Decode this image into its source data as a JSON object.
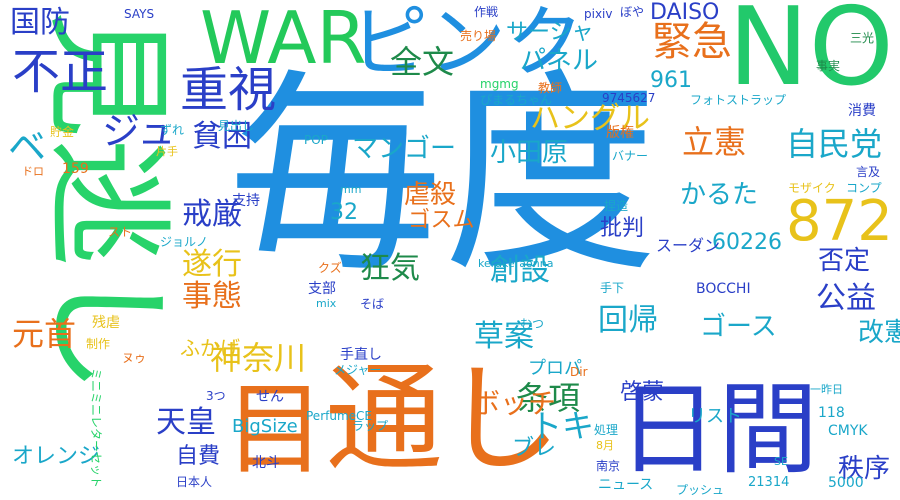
{
  "words": [
    {
      "text": "毎度",
      "color": "#1f8fe0"
    },
    {
      "text": "見逃し",
      "color": "#27d36a"
    },
    {
      "text": "通し",
      "color": "#e8701c"
    },
    {
      "text": "NO",
      "color": "#22c96b"
    },
    {
      "text": "WAR",
      "color": "#23c95a"
    },
    {
      "text": "ピンク",
      "color": "#1f8fe0"
    },
    {
      "text": "日間",
      "color": "#2a3fc7"
    },
    {
      "text": "目",
      "color": "#e8701c"
    },
    {
      "text": "872",
      "color": "#e8c21a"
    },
    {
      "text": "不正",
      "color": "#2a3fc7"
    },
    {
      "text": "重視",
      "color": "#2a3fc7"
    },
    {
      "text": "緊急",
      "color": "#e8701c"
    },
    {
      "text": "国防",
      "color": "#2a3fc7"
    },
    {
      "text": "全文",
      "color": "#1e8a4a"
    },
    {
      "text": "パネル",
      "color": "#1aa7c9"
    },
    {
      "text": "サーシャ",
      "color": "#1aa7c9"
    },
    {
      "text": "DAISO",
      "color": "#2a3fc7"
    },
    {
      "text": "961",
      "color": "#1aa7c9"
    },
    {
      "text": "立憲",
      "color": "#e8701c"
    },
    {
      "text": "自民党",
      "color": "#1aa7c9"
    },
    {
      "text": "ジュ",
      "color": "#2a3fc7"
    },
    {
      "text": "ベ",
      "color": "#1aa7c9"
    },
    {
      "text": "貧困",
      "color": "#2a3fc7"
    },
    {
      "text": "戒厳",
      "color": "#2a3fc7"
    },
    {
      "text": "マンゴー",
      "color": "#1aa7c9"
    },
    {
      "text": "小田原",
      "color": "#1aa7c9"
    },
    {
      "text": "ハングル",
      "color": "#e8c21a"
    },
    {
      "text": "虐殺",
      "color": "#e8701c"
    },
    {
      "text": "ゴスム",
      "color": "#e8701c"
    },
    {
      "text": "かるた",
      "color": "#1aa7c9"
    },
    {
      "text": "32",
      "color": "#1aa7c9"
    },
    {
      "text": "遂行",
      "color": "#e8c21a"
    },
    {
      "text": "事態",
      "color": "#e8701c"
    },
    {
      "text": "狂気",
      "color": "#1e8a4a"
    },
    {
      "text": "創設",
      "color": "#1aa7c9"
    },
    {
      "text": "批判",
      "color": "#2a3fc7"
    },
    {
      "text": "60226",
      "color": "#1aa7c9"
    },
    {
      "text": "否定",
      "color": "#2a3fc7"
    },
    {
      "text": "公益",
      "color": "#2a3fc7"
    },
    {
      "text": "元首",
      "color": "#e8701c"
    },
    {
      "text": "神奈川",
      "color": "#e8c21a"
    },
    {
      "text": "回帰",
      "color": "#1aa7c9"
    },
    {
      "text": "草案",
      "color": "#1aa7c9"
    },
    {
      "text": "ゴース",
      "color": "#1aa7c9"
    },
    {
      "text": "改憲",
      "color": "#1aa7c9"
    },
    {
      "text": "天皇",
      "color": "#2a3fc7"
    },
    {
      "text": "条項",
      "color": "#1e8a4a"
    },
    {
      "text": "トキ",
      "color": "#1aa7c9"
    },
    {
      "text": "ボッチ",
      "color": "#e8701c"
    },
    {
      "text": "啓蒙",
      "color": "#2a3fc7"
    },
    {
      "text": "オレンジ",
      "color": "#1aa7c9"
    },
    {
      "text": "自費",
      "color": "#2a3fc7"
    },
    {
      "text": "秩序",
      "color": "#2a3fc7"
    },
    {
      "text": "ブレ",
      "color": "#1aa7c9"
    },
    {
      "text": "支部",
      "color": "#2a3fc7"
    },
    {
      "text": "支持",
      "color": "#2a3fc7"
    },
    {
      "text": "BigSize",
      "color": "#1aa7c9"
    },
    {
      "text": "ふかげ",
      "color": "#e8c21a"
    },
    {
      "text": "プロパ",
      "color": "#1aa7c9"
    },
    {
      "text": "リスト",
      "color": "#1aa7c9"
    },
    {
      "text": "スーダン",
      "color": "#2a3fc7"
    },
    {
      "text": "手直し",
      "color": "#2a3fc7"
    },
    {
      "text": "BOCCHI",
      "color": "#2a3fc7"
    },
    {
      "text": "北斗",
      "color": "#2a3fc7"
    },
    {
      "text": "118",
      "color": "#1aa7c9"
    },
    {
      "text": "CMYK",
      "color": "#1aa7c9"
    },
    {
      "text": "5000",
      "color": "#1aa7c9"
    },
    {
      "text": "21314",
      "color": "#1aa7c9"
    },
    {
      "text": "ニュース",
      "color": "#1aa7c9"
    },
    {
      "text": "南京",
      "color": "#2a3fc7"
    },
    {
      "text": "処理",
      "color": "#1aa7c9"
    },
    {
      "text": "せん",
      "color": "#2a3fc7"
    },
    {
      "text": "ラップ",
      "color": "#1aa7c9"
    },
    {
      "text": "PerfumeCE",
      "color": "#1aa7c9"
    },
    {
      "text": "日本人",
      "color": "#2a3fc7"
    },
    {
      "text": "残虐",
      "color": "#e8c21a"
    },
    {
      "text": "制作",
      "color": "#e8c21a"
    },
    {
      "text": "159",
      "color": "#e8701c"
    },
    {
      "text": "貯金",
      "color": "#e8c21a"
    },
    {
      "text": "SAYS",
      "color": "#2a3fc7"
    },
    {
      "text": "作戦",
      "color": "#2a3fc7"
    },
    {
      "text": "売り場",
      "color": "#e8701c"
    },
    {
      "text": "pixiv",
      "color": "#2a3fc7"
    },
    {
      "text": "ぼや",
      "color": "#2a3fc7"
    },
    {
      "text": "三光",
      "color": "#1e8a4a"
    },
    {
      "text": "事実",
      "color": "#1e8a4a"
    },
    {
      "text": "mgmg",
      "color": "#27d36a"
    },
    {
      "text": "教師",
      "color": "#e8701c"
    },
    {
      "text": "9745627",
      "color": "#2a3fc7"
    },
    {
      "text": "ぴまるちゃん",
      "color": "#1aa7c9"
    },
    {
      "text": "フォトストラップ",
      "color": "#1aa7c9"
    },
    {
      "text": "消費",
      "color": "#2a3fc7"
    },
    {
      "text": "版権",
      "color": "#e8701c"
    },
    {
      "text": "バナー",
      "color": "#1aa7c9"
    },
    {
      "text": "言及",
      "color": "#2a3fc7"
    },
    {
      "text": "コンプ",
      "color": "#1aa7c9"
    },
    {
      "text": "モザイク",
      "color": "#e8c21a"
    },
    {
      "text": "捏造",
      "color": "#1aa7c9"
    },
    {
      "text": "POP",
      "color": "#1aa7c9"
    },
    {
      "text": "見出し",
      "color": "#1aa7c9"
    },
    {
      "text": "ずれ",
      "color": "#1aa7c9"
    },
    {
      "text": "片手",
      "color": "#e8c21a"
    },
    {
      "text": "ドロ",
      "color": "#e8701c"
    },
    {
      "text": "ジョルノ",
      "color": "#1aa7c9"
    },
    {
      "text": "スト",
      "color": "#e8701c"
    },
    {
      "text": "mm",
      "color": "#1aa7c9"
    },
    {
      "text": "クズ",
      "color": "#e8701c"
    },
    {
      "text": "kerakeraonna",
      "color": "#1aa7c9"
    },
    {
      "text": "mix",
      "color": "#1aa7c9"
    },
    {
      "text": "そば",
      "color": "#2a3fc7"
    },
    {
      "text": "手下",
      "color": "#1aa7c9"
    },
    {
      "text": "むつ",
      "color": "#1aa7c9"
    },
    {
      "text": "メジャー",
      "color": "#1aa7c9"
    },
    {
      "text": "ヌゥ",
      "color": "#e8701c"
    },
    {
      "text": "Dir",
      "color": "#e8701c"
    },
    {
      "text": "3つ",
      "color": "#2a3fc7"
    },
    {
      "text": "8月",
      "color": "#e8c21a"
    },
    {
      "text": "一昨日",
      "color": "#1aa7c9"
    },
    {
      "text": "SE",
      "color": "#1aa7c9"
    },
    {
      "text": "プッシュ",
      "color": "#1aa7c9"
    },
    {
      "text": "ミニミニレターセット",
      "color": "#27d36a"
    }
  ]
}
